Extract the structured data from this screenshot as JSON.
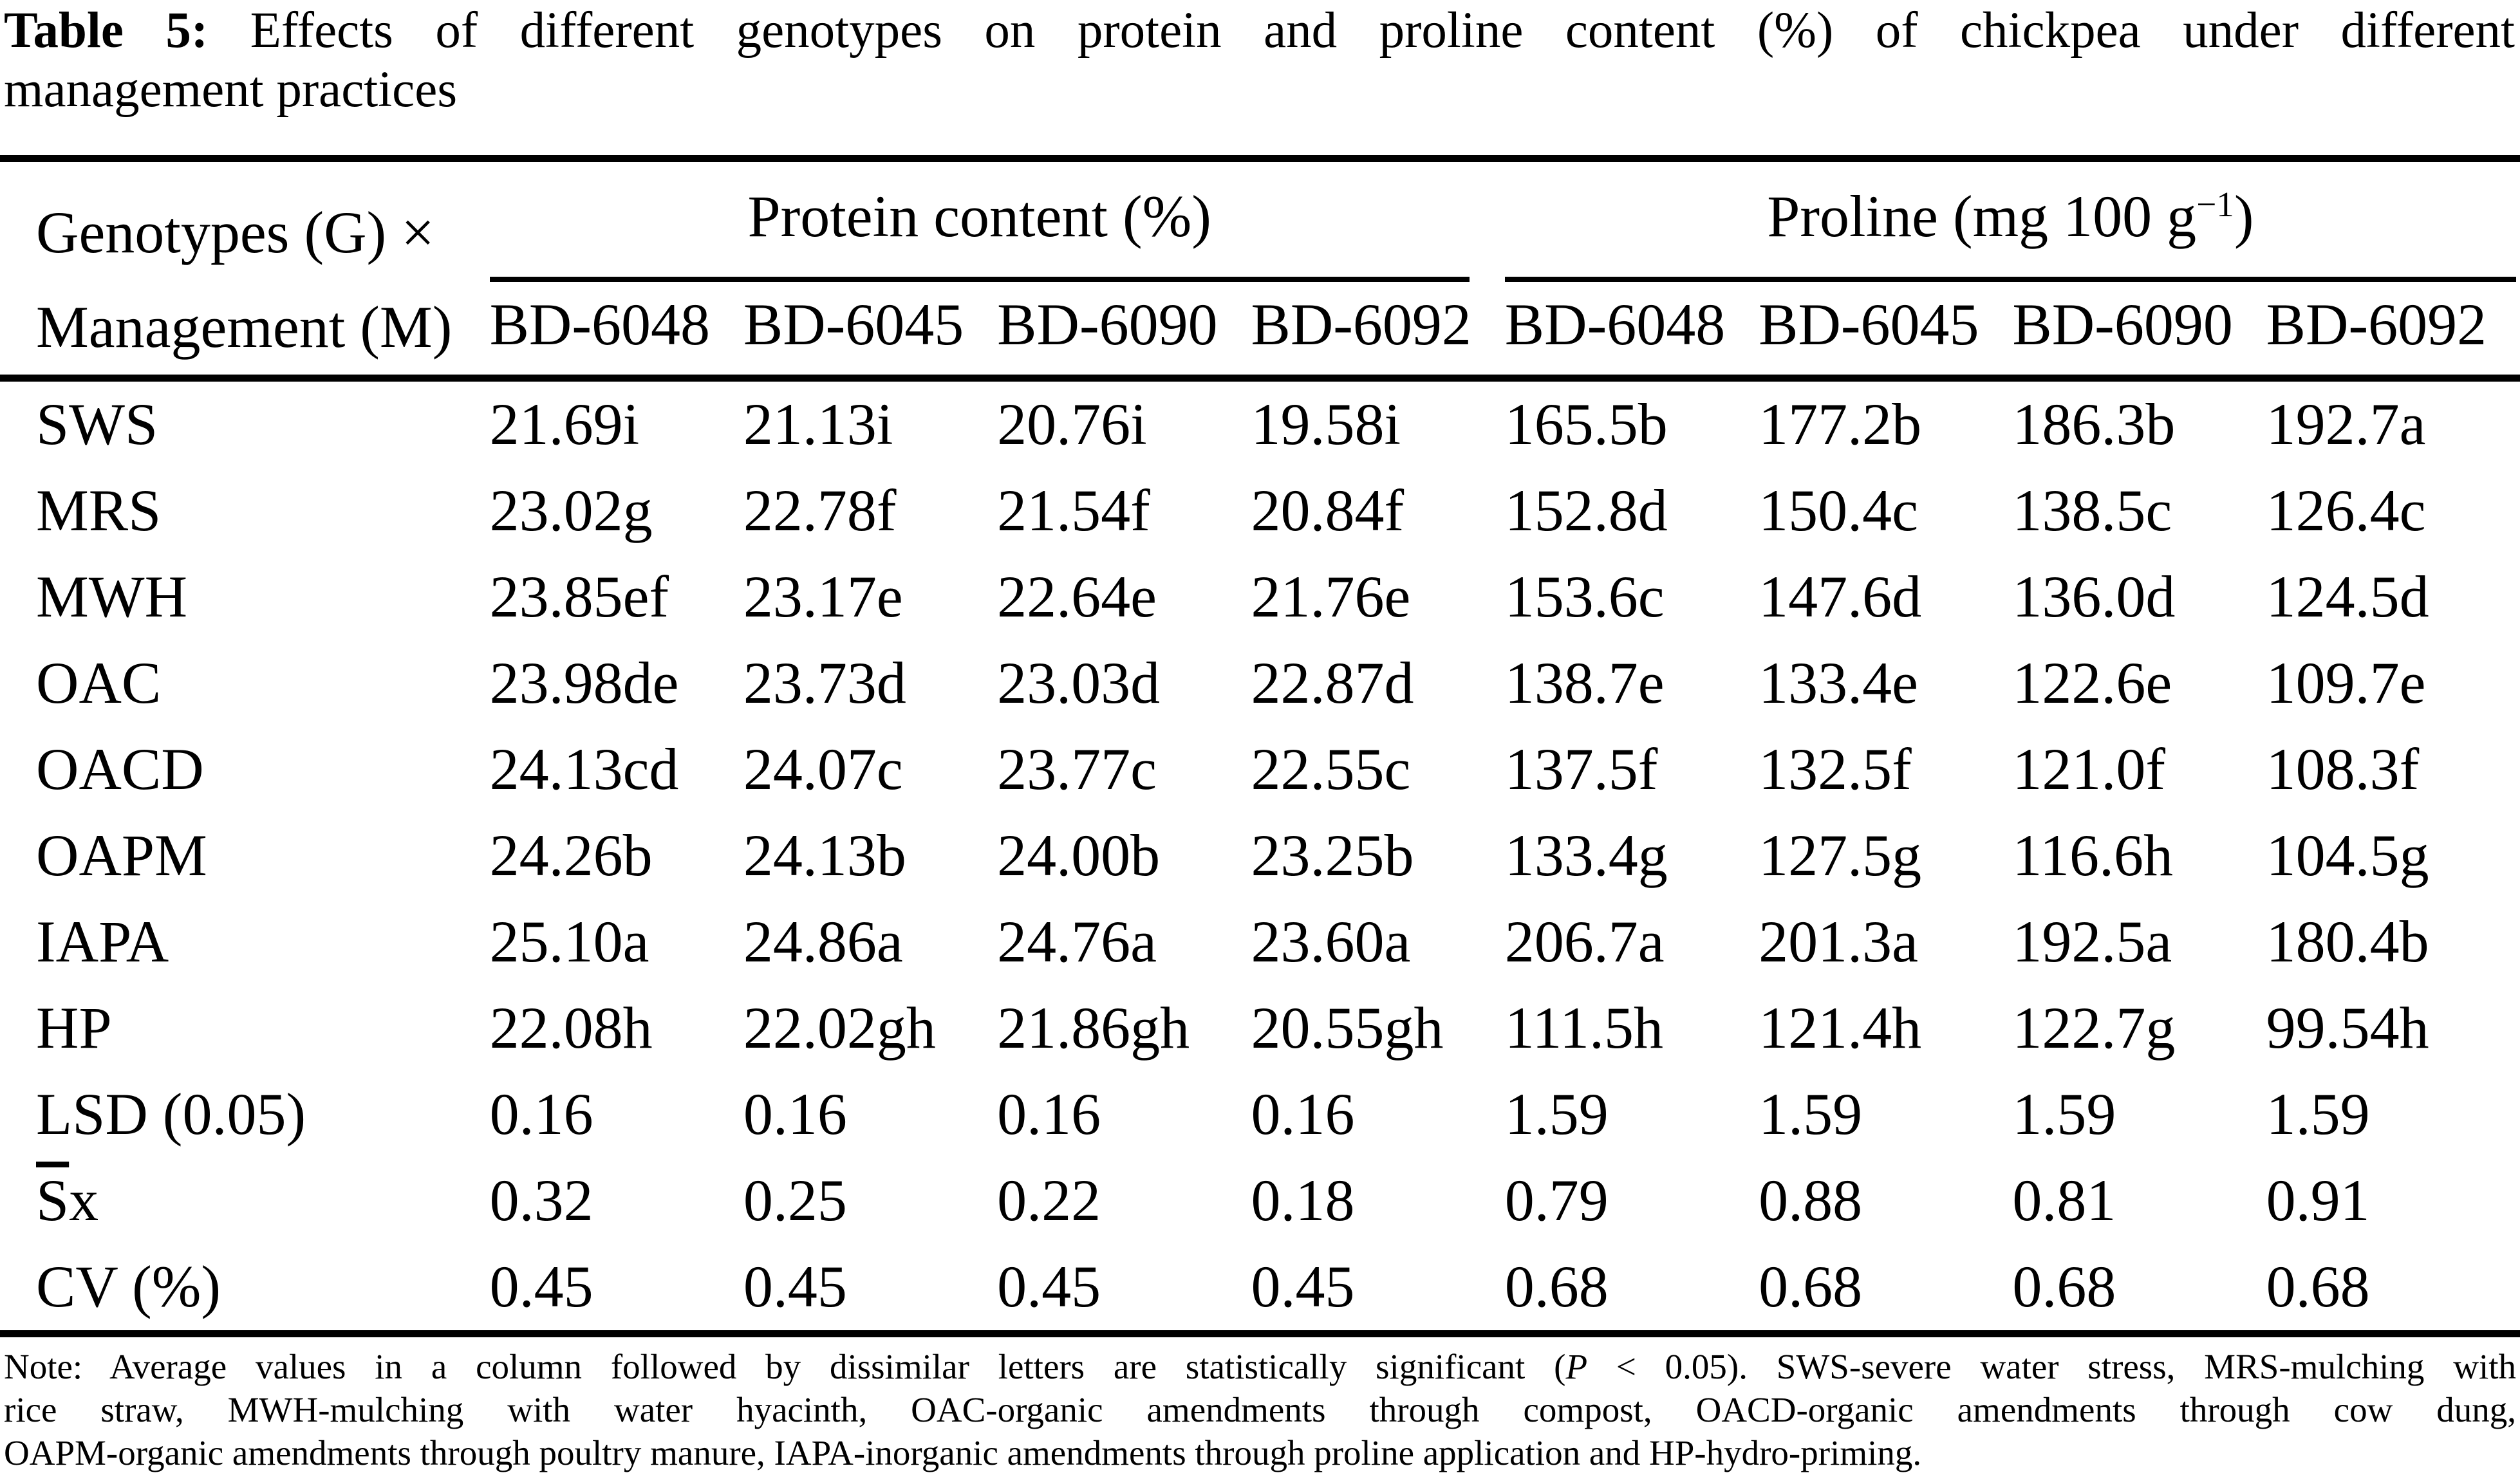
{
  "title": {
    "label": "Table 5:",
    "line1_rest": "Effects of different genotypes on protein and proline content (%) of chickpea under different",
    "line2": "management practices"
  },
  "table": {
    "corner": {
      "line1": "Genotypes (G) ×",
      "line2": "Management (M)"
    },
    "protein_group": {
      "label": "Protein content (%)",
      "columns": [
        "BD-6048",
        "BD-6045",
        "BD-6090",
        "BD-6092"
      ]
    },
    "proline_group": {
      "label_prefix": "Proline (mg 100 g",
      "label_sup": "−1",
      "label_suffix": ")",
      "columns": [
        "BD-6048",
        "BD-6045",
        "BD-6090",
        "BD-6092"
      ]
    },
    "rows": [
      {
        "label": "SWS",
        "protein": [
          "21.69i",
          "21.13i",
          "20.76i",
          "19.58i"
        ],
        "proline": [
          "165.5b",
          "177.2b",
          "186.3b",
          "192.7a"
        ]
      },
      {
        "label": "MRS",
        "protein": [
          "23.02g",
          "22.78f",
          "21.54f",
          "20.84f"
        ],
        "proline": [
          "152.8d",
          "150.4c",
          "138.5c",
          "126.4c"
        ]
      },
      {
        "label": "MWH",
        "protein": [
          "23.85ef",
          "23.17e",
          "22.64e",
          "21.76e"
        ],
        "proline": [
          "153.6c",
          "147.6d",
          "136.0d",
          "124.5d"
        ]
      },
      {
        "label": "OAC",
        "protein": [
          "23.98de",
          "23.73d",
          "23.03d",
          "22.87d"
        ],
        "proline": [
          "138.7e",
          "133.4e",
          "122.6e",
          "109.7e"
        ]
      },
      {
        "label": "OACD",
        "protein": [
          "24.13cd",
          "24.07c",
          "23.77c",
          "22.55c"
        ],
        "proline": [
          "137.5f",
          "132.5f",
          "121.0f",
          "108.3f"
        ]
      },
      {
        "label": "OAPM",
        "protein": [
          "24.26b",
          "24.13b",
          "24.00b",
          "23.25b"
        ],
        "proline": [
          "133.4g",
          "127.5g",
          "116.6h",
          "104.5g"
        ]
      },
      {
        "label": "IAPA",
        "protein": [
          "25.10a",
          "24.86a",
          "24.76a",
          "23.60a"
        ],
        "proline": [
          "206.7a",
          "201.3a",
          "192.5a",
          "180.4b"
        ]
      },
      {
        "label": "HP",
        "protein": [
          "22.08h",
          "22.02gh",
          "21.86gh",
          "20.55gh"
        ],
        "proline": [
          "111.5h",
          "121.4h",
          "122.7g",
          "99.54h"
        ]
      },
      {
        "label": "LSD (0.05)",
        "protein": [
          "0.16",
          "0.16",
          "0.16",
          "0.16"
        ],
        "proline": [
          "1.59",
          "1.59",
          "1.59",
          "1.59"
        ]
      },
      {
        "label": "Sx",
        "overline_first_letter": true,
        "protein": [
          "0.32",
          "0.25",
          "0.22",
          "0.18"
        ],
        "proline": [
          "0.79",
          "0.88",
          "0.81",
          "0.91"
        ]
      },
      {
        "label": "CV (%)",
        "protein": [
          "0.45",
          "0.45",
          "0.45",
          "0.45"
        ],
        "proline": [
          "0.68",
          "0.68",
          "0.68",
          "0.68"
        ]
      }
    ]
  },
  "note": {
    "line1_before_p": "Note: Average values in a column followed by dissimilar letters are statistically significant (",
    "line1_p": "P",
    "line1_after_p": " < 0.05). SWS-severe water stress, MRS-mulching with",
    "line2": "rice straw, MWH-mulching with water hyacinth, OAC-organic amendments through compost, OACD-organic amendments through cow dung,",
    "line3": "OAPM-organic amendments through poultry manure, IAPA-inorganic amendments through proline application and HP-hydro-priming."
  },
  "colors": {
    "text": "#000000",
    "background": "#ffffff",
    "rule": "#000000"
  }
}
